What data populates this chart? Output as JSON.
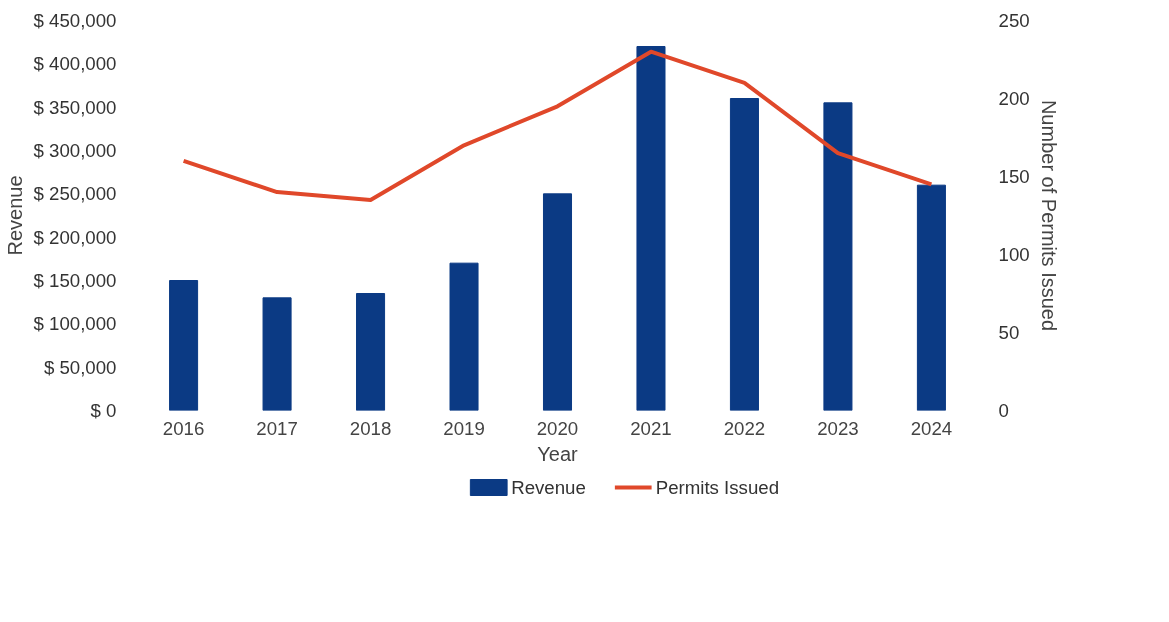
{
  "chart_data": {
    "type": "bar",
    "xlabel": "Year",
    "ylabel": "Revenue",
    "y2label": "Number of Permits Issued",
    "categories": [
      "2016",
      "2017",
      "2018",
      "2019",
      "2020",
      "2021",
      "2022",
      "2023",
      "2024"
    ],
    "series": [
      {
        "name": "Revenue",
        "color": "#0b3a84",
        "values": [
          150000,
          130000,
          135000,
          170000,
          250000,
          420000,
          360000,
          355000,
          260000
        ]
      },
      {
        "name": "Permits Issued",
        "type": "line",
        "axis": "y2",
        "color": "#e0482a",
        "values": [
          160,
          140,
          135,
          170,
          195,
          230,
          210,
          165,
          145
        ]
      }
    ],
    "ylim": [
      0,
      450000
    ],
    "yticks": [
      {
        "value": 0,
        "label": "$ 0"
      },
      {
        "value": 50000,
        "label": "$ 50,000"
      },
      {
        "value": 100000,
        "label": "$ 100,000"
      },
      {
        "value": 150000,
        "label": "$ 150,000"
      },
      {
        "value": 200000,
        "label": "$ 200,000"
      },
      {
        "value": 250000,
        "label": "$ 250,000"
      },
      {
        "value": 300000,
        "label": "$ 300,000"
      },
      {
        "value": 350000,
        "label": "$ 350,000"
      },
      {
        "value": 400000,
        "label": "$ 400,000"
      },
      {
        "value": 450000,
        "label": "$ 450,000"
      }
    ],
    "y2lim": [
      0,
      250
    ],
    "y2ticks": [
      0,
      50,
      100,
      150,
      200,
      250
    ],
    "grid": false,
    "legend": "bottom"
  }
}
